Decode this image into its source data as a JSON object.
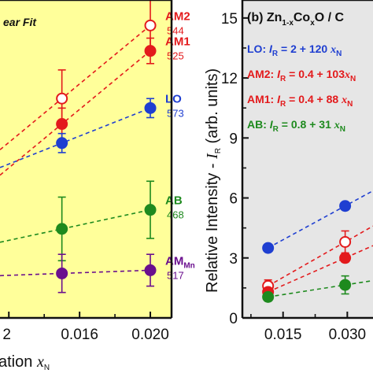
{
  "chart_data": [
    {
      "panel": "left",
      "type": "scatter",
      "title": "",
      "annotation": "ear Fit",
      "xlabel_prefix": "ation ",
      "xlabel_var": "x",
      "xlabel_sub": "N",
      "xticks": [
        "2",
        "0.016",
        "0.020"
      ],
      "xlim": [
        0.0115,
        0.0212
      ],
      "ylim": [
        0,
        1
      ],
      "series": [
        {
          "name": "AM2",
          "tag": "544",
          "color": "#e31a1c",
          "filled": false,
          "x": [
            0.015,
            0.02
          ],
          "y": [
            0.69,
            0.92
          ],
          "err": [
            0.09,
            0.08
          ]
        },
        {
          "name": "AM1",
          "tag": "525",
          "color": "#e31a1c",
          "filled": true,
          "x": [
            0.015,
            0.02
          ],
          "y": [
            0.61,
            0.84
          ],
          "err": [
            0.05,
            0.04
          ]
        },
        {
          "name": "LO",
          "tag": "573",
          "color": "#1f3fd1",
          "filled": true,
          "x": [
            0.015,
            0.02
          ],
          "y": [
            0.55,
            0.66
          ],
          "err": [
            0.03,
            0.03
          ]
        },
        {
          "name": "AB",
          "tag": "468",
          "color": "#1e8a1e",
          "filled": true,
          "x": [
            0.015,
            0.02
          ],
          "y": [
            0.28,
            0.34
          ],
          "err": [
            0.1,
            0.09
          ]
        },
        {
          "name": "AM",
          "name_sub": "Mn",
          "tag": "517",
          "color": "#6a0f8e",
          "filled": true,
          "x": [
            0.015,
            0.02
          ],
          "y": [
            0.14,
            0.15
          ],
          "err": [
            0.06,
            0.05
          ]
        }
      ]
    },
    {
      "panel": "right",
      "type": "scatter",
      "title_parts": [
        "(b) Zn",
        "1-x",
        "Co",
        "x",
        "O / C"
      ],
      "ylabel_main": "Relative Intensity - ",
      "ylabel_var": "I",
      "ylabel_sub": "R",
      "ylabel_unit": " (arb. units)",
      "yticks": [
        "0",
        "3",
        "6",
        "9",
        "12",
        "15"
      ],
      "ytick_values": [
        0,
        3,
        6,
        9,
        12,
        15
      ],
      "xticks": [
        "0.015",
        "0.030"
      ],
      "xtick_values": [
        0.015,
        0.03
      ],
      "xlim": [
        0.0055,
        0.036
      ],
      "ylim": [
        0,
        15.9
      ],
      "legend": [
        {
          "text": "LO: ",
          "formula": "= 2 + 120 ",
          "color": "#1f3fd1"
        },
        {
          "text": "AM2: ",
          "formula": "= 0.4 + 103",
          "color": "#e31a1c"
        },
        {
          "text": "AM1: ",
          "formula": "= 0.4 + 88 ",
          "color": "#e31a1c"
        },
        {
          "text": "AB: ",
          "formula": "= 0.8 + 31 ",
          "color": "#1e8a1e"
        }
      ],
      "legend_var": "I",
      "legend_sub": "R",
      "legend_x": "x",
      "legend_xsub": "N",
      "series": [
        {
          "name": "LO",
          "color": "#1f3fd1",
          "filled": true,
          "x": [
            0.0115,
            0.0295
          ],
          "y": [
            3.5,
            5.6
          ],
          "err": [
            0,
            0
          ],
          "fit": [
            2,
            120
          ]
        },
        {
          "name": "AM2",
          "color": "#e31a1c",
          "filled": false,
          "x": [
            0.0115,
            0.0295
          ],
          "y": [
            1.6,
            3.8
          ],
          "err": [
            0.3,
            0.55
          ],
          "fit": [
            0.4,
            103
          ]
        },
        {
          "name": "AM1",
          "color": "#e31a1c",
          "filled": true,
          "x": [
            0.0115,
            0.0295
          ],
          "y": [
            1.3,
            3.0
          ],
          "err": [
            0,
            0.2
          ],
          "fit": [
            0.4,
            88
          ]
        },
        {
          "name": "AB",
          "color": "#1e8a1e",
          "filled": true,
          "x": [
            0.0115,
            0.0295
          ],
          "y": [
            1.05,
            1.65
          ],
          "err": [
            0.2,
            0.45
          ],
          "fit": [
            0.8,
            31
          ]
        }
      ]
    }
  ],
  "colors": {
    "panel_left_bg": "#ffff9a",
    "panel_right_bg": "#e6e6e6"
  }
}
